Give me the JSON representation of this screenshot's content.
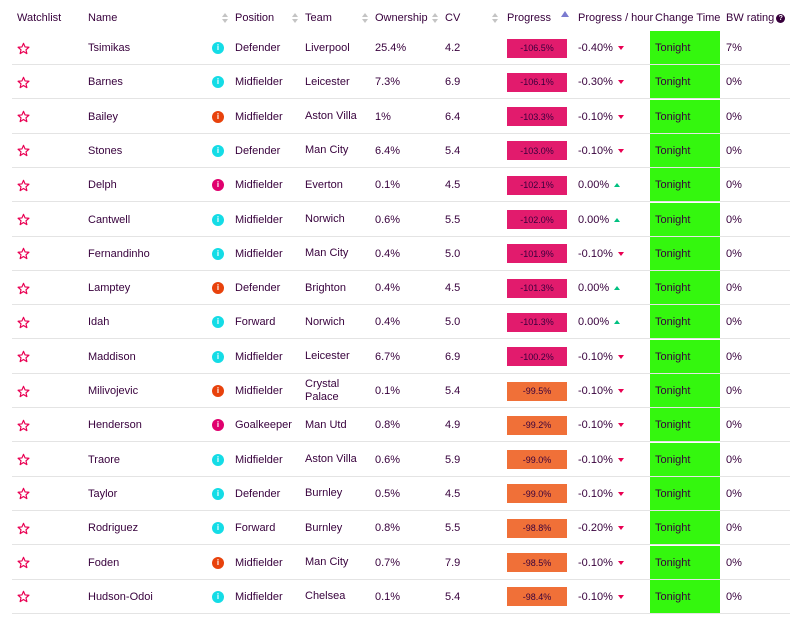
{
  "colors": {
    "text": "#37003c",
    "negative_strong": "#e21b6d",
    "negative_mild": "#f07038",
    "change_time": "#34f70e",
    "status_cyan": "#14dce6",
    "status_orange": "#e8420c",
    "status_magenta": "#e0006e",
    "star": "#e90052"
  },
  "columns": {
    "watchlist": "Watchlist",
    "name": "Name",
    "position": "Position",
    "team": "Team",
    "ownership": "Ownership",
    "cv": "CV",
    "progress": "Progress",
    "progress_hour": "Progress / hour",
    "change_time": "Change Time",
    "bw_rating": "BW rating",
    "help_icon": "?"
  },
  "rows": [
    {
      "name": "Tsimikas",
      "status": "info",
      "status_color": "cyan",
      "position": "Defender",
      "team": "Liverpool",
      "ownership": "25.4%",
      "cv": "4.2",
      "progress": "-106.5%",
      "progress_level": "strong",
      "progress_hour": "-0.40%",
      "trend": "down",
      "change_time": "Tonight",
      "bw_rating": "7%"
    },
    {
      "name": "Barnes",
      "status": "info",
      "status_color": "cyan",
      "position": "Midfielder",
      "team": "Leicester",
      "ownership": "7.3%",
      "cv": "6.9",
      "progress": "-106.1%",
      "progress_level": "strong",
      "progress_hour": "-0.30%",
      "trend": "down",
      "change_time": "Tonight",
      "bw_rating": "0%"
    },
    {
      "name": "Bailey",
      "status": "info",
      "status_color": "orange",
      "position": "Midfielder",
      "team": "Aston Villa",
      "ownership": "1%",
      "cv": "6.4",
      "progress": "-103.3%",
      "progress_level": "strong",
      "progress_hour": "-0.10%",
      "trend": "down",
      "change_time": "Tonight",
      "bw_rating": "0%"
    },
    {
      "name": "Stones",
      "status": "info",
      "status_color": "cyan",
      "position": "Defender",
      "team": "Man City",
      "ownership": "6.4%",
      "cv": "5.4",
      "progress": "-103.0%",
      "progress_level": "strong",
      "progress_hour": "-0.10%",
      "trend": "down",
      "change_time": "Tonight",
      "bw_rating": "0%"
    },
    {
      "name": "Delph",
      "status": "info",
      "status_color": "magenta",
      "position": "Midfielder",
      "team": "Everton",
      "ownership": "0.1%",
      "cv": "4.5",
      "progress": "-102.1%",
      "progress_level": "strong",
      "progress_hour": "0.00%",
      "trend": "up",
      "change_time": "Tonight",
      "bw_rating": "0%"
    },
    {
      "name": "Cantwell",
      "status": "info",
      "status_color": "cyan",
      "position": "Midfielder",
      "team": "Norwich",
      "ownership": "0.6%",
      "cv": "5.5",
      "progress": "-102.0%",
      "progress_level": "strong",
      "progress_hour": "0.00%",
      "trend": "up",
      "change_time": "Tonight",
      "bw_rating": "0%"
    },
    {
      "name": "Fernandinho",
      "status": "info",
      "status_color": "cyan",
      "position": "Midfielder",
      "team": "Man City",
      "ownership": "0.4%",
      "cv": "5.0",
      "progress": "-101.9%",
      "progress_level": "strong",
      "progress_hour": "-0.10%",
      "trend": "down",
      "change_time": "Tonight",
      "bw_rating": "0%"
    },
    {
      "name": "Lamptey",
      "status": "info",
      "status_color": "orange",
      "position": "Defender",
      "team": "Brighton",
      "ownership": "0.4%",
      "cv": "4.5",
      "progress": "-101.3%",
      "progress_level": "strong",
      "progress_hour": "0.00%",
      "trend": "up",
      "change_time": "Tonight",
      "bw_rating": "0%"
    },
    {
      "name": "Idah",
      "status": "info",
      "status_color": "cyan",
      "position": "Forward",
      "team": "Norwich",
      "ownership": "0.4%",
      "cv": "5.0",
      "progress": "-101.3%",
      "progress_level": "strong",
      "progress_hour": "0.00%",
      "trend": "up",
      "change_time": "Tonight",
      "bw_rating": "0%"
    },
    {
      "name": "Maddison",
      "status": "info",
      "status_color": "cyan",
      "position": "Midfielder",
      "team": "Leicester",
      "ownership": "6.7%",
      "cv": "6.9",
      "progress": "-100.2%",
      "progress_level": "strong",
      "progress_hour": "-0.10%",
      "trend": "down",
      "change_time": "Tonight",
      "bw_rating": "0%"
    },
    {
      "name": "Milivojevic",
      "status": "info",
      "status_color": "orange",
      "position": "Midfielder",
      "team": "Crystal Palace",
      "team_line1": "Crystal",
      "team_line2": "Palace",
      "ownership": "0.1%",
      "cv": "5.4",
      "progress": "-99.5%",
      "progress_level": "mild",
      "progress_hour": "-0.10%",
      "trend": "down",
      "change_time": "Tonight",
      "bw_rating": "0%"
    },
    {
      "name": "Henderson",
      "status": "info",
      "status_color": "magenta",
      "position": "Goalkeeper",
      "team": "Man Utd",
      "ownership": "0.8%",
      "cv": "4.9",
      "progress": "-99.2%",
      "progress_level": "mild",
      "progress_hour": "-0.10%",
      "trend": "down",
      "change_time": "Tonight",
      "bw_rating": "0%"
    },
    {
      "name": "Traore",
      "status": "info",
      "status_color": "cyan",
      "position": "Midfielder",
      "team": "Aston Villa",
      "ownership": "0.6%",
      "cv": "5.9",
      "progress": "-99.0%",
      "progress_level": "mild",
      "progress_hour": "-0.10%",
      "trend": "down",
      "change_time": "Tonight",
      "bw_rating": "0%"
    },
    {
      "name": "Taylor",
      "status": "info",
      "status_color": "cyan",
      "position": "Defender",
      "team": "Burnley",
      "ownership": "0.5%",
      "cv": "4.5",
      "progress": "-99.0%",
      "progress_level": "mild",
      "progress_hour": "-0.10%",
      "trend": "down",
      "change_time": "Tonight",
      "bw_rating": "0%"
    },
    {
      "name": "Rodriguez",
      "status": "info",
      "status_color": "cyan",
      "position": "Forward",
      "team": "Burnley",
      "ownership": "0.8%",
      "cv": "5.5",
      "progress": "-98.8%",
      "progress_level": "mild",
      "progress_hour": "-0.20%",
      "trend": "down",
      "change_time": "Tonight",
      "bw_rating": "0%"
    },
    {
      "name": "Foden",
      "status": "info",
      "status_color": "orange",
      "position": "Midfielder",
      "team": "Man City",
      "ownership": "0.7%",
      "cv": "7.9",
      "progress": "-98.5%",
      "progress_level": "mild",
      "progress_hour": "-0.10%",
      "trend": "down",
      "change_time": "Tonight",
      "bw_rating": "0%"
    },
    {
      "name": "Hudson-Odoi",
      "status": "info",
      "status_color": "cyan",
      "position": "Midfielder",
      "team": "Chelsea",
      "ownership": "0.1%",
      "cv": "5.4",
      "progress": "-98.4%",
      "progress_level": "mild",
      "progress_hour": "-0.10%",
      "trend": "down",
      "change_time": "Tonight",
      "bw_rating": "0%"
    }
  ]
}
